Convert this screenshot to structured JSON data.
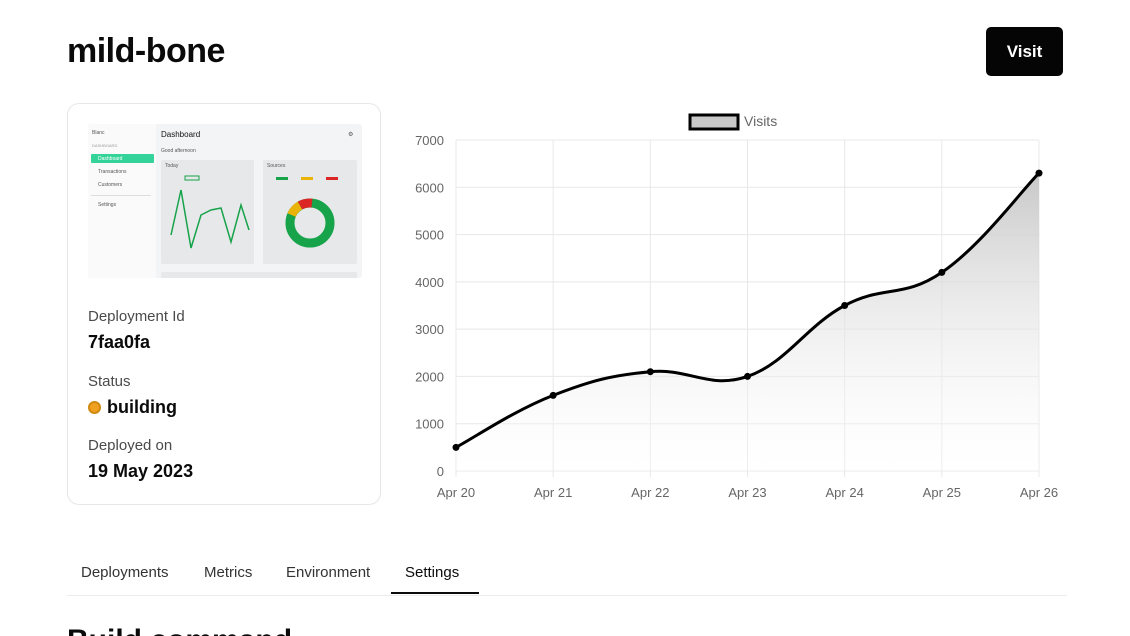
{
  "project": {
    "name": "mild-bone"
  },
  "actions": {
    "visit_label": "Visit"
  },
  "deployment": {
    "id_label": "Deployment Id",
    "id_value": "7faa0fa",
    "status_label": "Status",
    "status_value": "building",
    "status_color": "#f0a020",
    "deployed_label": "Deployed on",
    "deployed_value": "19 May 2023"
  },
  "thumbnail": {
    "brand": "Blanc",
    "section": "DASHBOARD",
    "nav": [
      "Dashboard",
      "Transactions",
      "Customers",
      "Settings"
    ],
    "title": "Dashboard",
    "greeting": "Good afternoon",
    "panel_left": "Today",
    "panel_right": "Sources",
    "donut_colors": [
      "#16a34a",
      "#eab308",
      "#dc2626"
    ]
  },
  "tabs": [
    {
      "label": "Deployments",
      "active": false
    },
    {
      "label": "Metrics",
      "active": false
    },
    {
      "label": "Environment",
      "active": false
    },
    {
      "label": "Settings",
      "active": true
    }
  ],
  "next_section": {
    "heading": "Build command"
  },
  "chart_data": {
    "type": "area",
    "title": "",
    "xlabel": "",
    "ylabel": "",
    "categories": [
      "Apr 20",
      "Apr 21",
      "Apr 22",
      "Apr 23",
      "Apr 24",
      "Apr 25",
      "Apr 26"
    ],
    "series": [
      {
        "name": "Visits",
        "values": [
          500,
          1600,
          2100,
          2000,
          3500,
          4200,
          6300
        ]
      }
    ],
    "ylim": [
      0,
      7000
    ],
    "yticks": [
      0,
      1000,
      2000,
      3000,
      4000,
      5000,
      6000,
      7000
    ],
    "grid": true,
    "legend": "top-center",
    "line_color": "#000000",
    "fill_color": "#c8c8c8"
  }
}
